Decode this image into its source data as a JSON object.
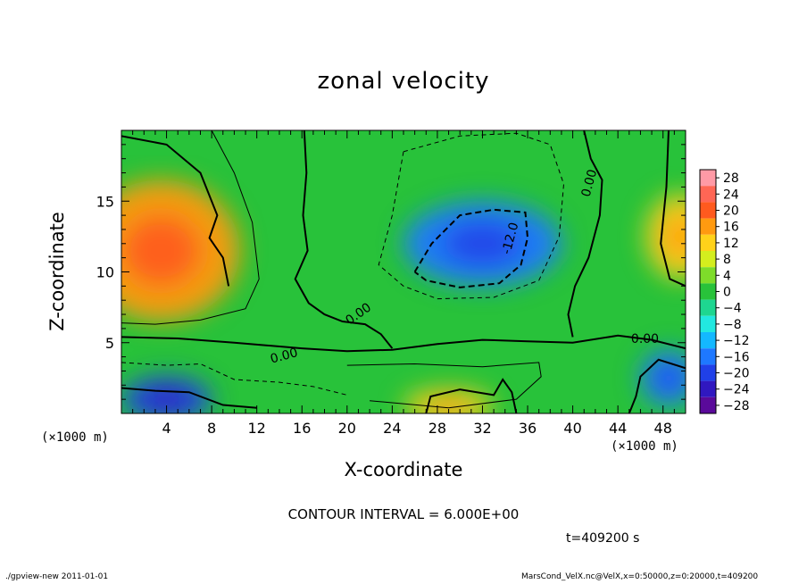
{
  "chart_data": {
    "type": "heatmap",
    "title": "zonal velocity",
    "xlabel": "X-coordinate",
    "ylabel": "Z-coordinate",
    "x_unit_label": "(×1000 m)",
    "xlim": [
      0,
      50
    ],
    "ylim": [
      0,
      20
    ],
    "x_ticks": [
      4,
      8,
      12,
      16,
      20,
      24,
      28,
      32,
      36,
      40,
      44,
      48
    ],
    "y_ticks": [
      5,
      10,
      15
    ],
    "colorbar": {
      "levels": [
        28,
        24,
        20,
        16,
        12,
        8,
        4,
        0,
        -4,
        -8,
        -12,
        -16,
        -20,
        -24,
        -28
      ],
      "labels": [
        "28",
        "24",
        "20",
        "16",
        "12",
        "8",
        "4",
        "0",
        "−4",
        "−8",
        "−12",
        "−16",
        "−20",
        "−24",
        "−28"
      ],
      "colors": [
        "#ff9aa6",
        "#ff6655",
        "#ff5a1e",
        "#ff9a10",
        "#ffd21a",
        "#d4ee1e",
        "#7edc2a",
        "#28c23a",
        "#1ed690",
        "#22e8e0",
        "#14b8ff",
        "#1e78ff",
        "#2040e8",
        "#3018c0",
        "#5a0a9a"
      ]
    },
    "field_features": [
      {
        "x": 3.5,
        "z": 11.5,
        "value": 16
      },
      {
        "x": 49.5,
        "z": 12.5,
        "value": 14
      },
      {
        "x": 32,
        "z": 12,
        "value": -14
      },
      {
        "x": 4,
        "z": 1,
        "value": -18
      },
      {
        "x": 29,
        "z": 0.5,
        "value": 14
      },
      {
        "x": 48.5,
        "z": 2.5,
        "value": -14
      }
    ],
    "contour_labels": [
      "0.00",
      "0.00",
      "0.00",
      "0.00",
      "-12.0"
    ],
    "contour_interval": "CONTOUR INTERVAL = 6.000E+00",
    "time": "t=409200 s"
  },
  "footer": {
    "left": "./gpview-new  2011-01-01",
    "right": "MarsCond_VelX.nc@VelX,x=0:50000,z=0:20000,t=409200"
  }
}
